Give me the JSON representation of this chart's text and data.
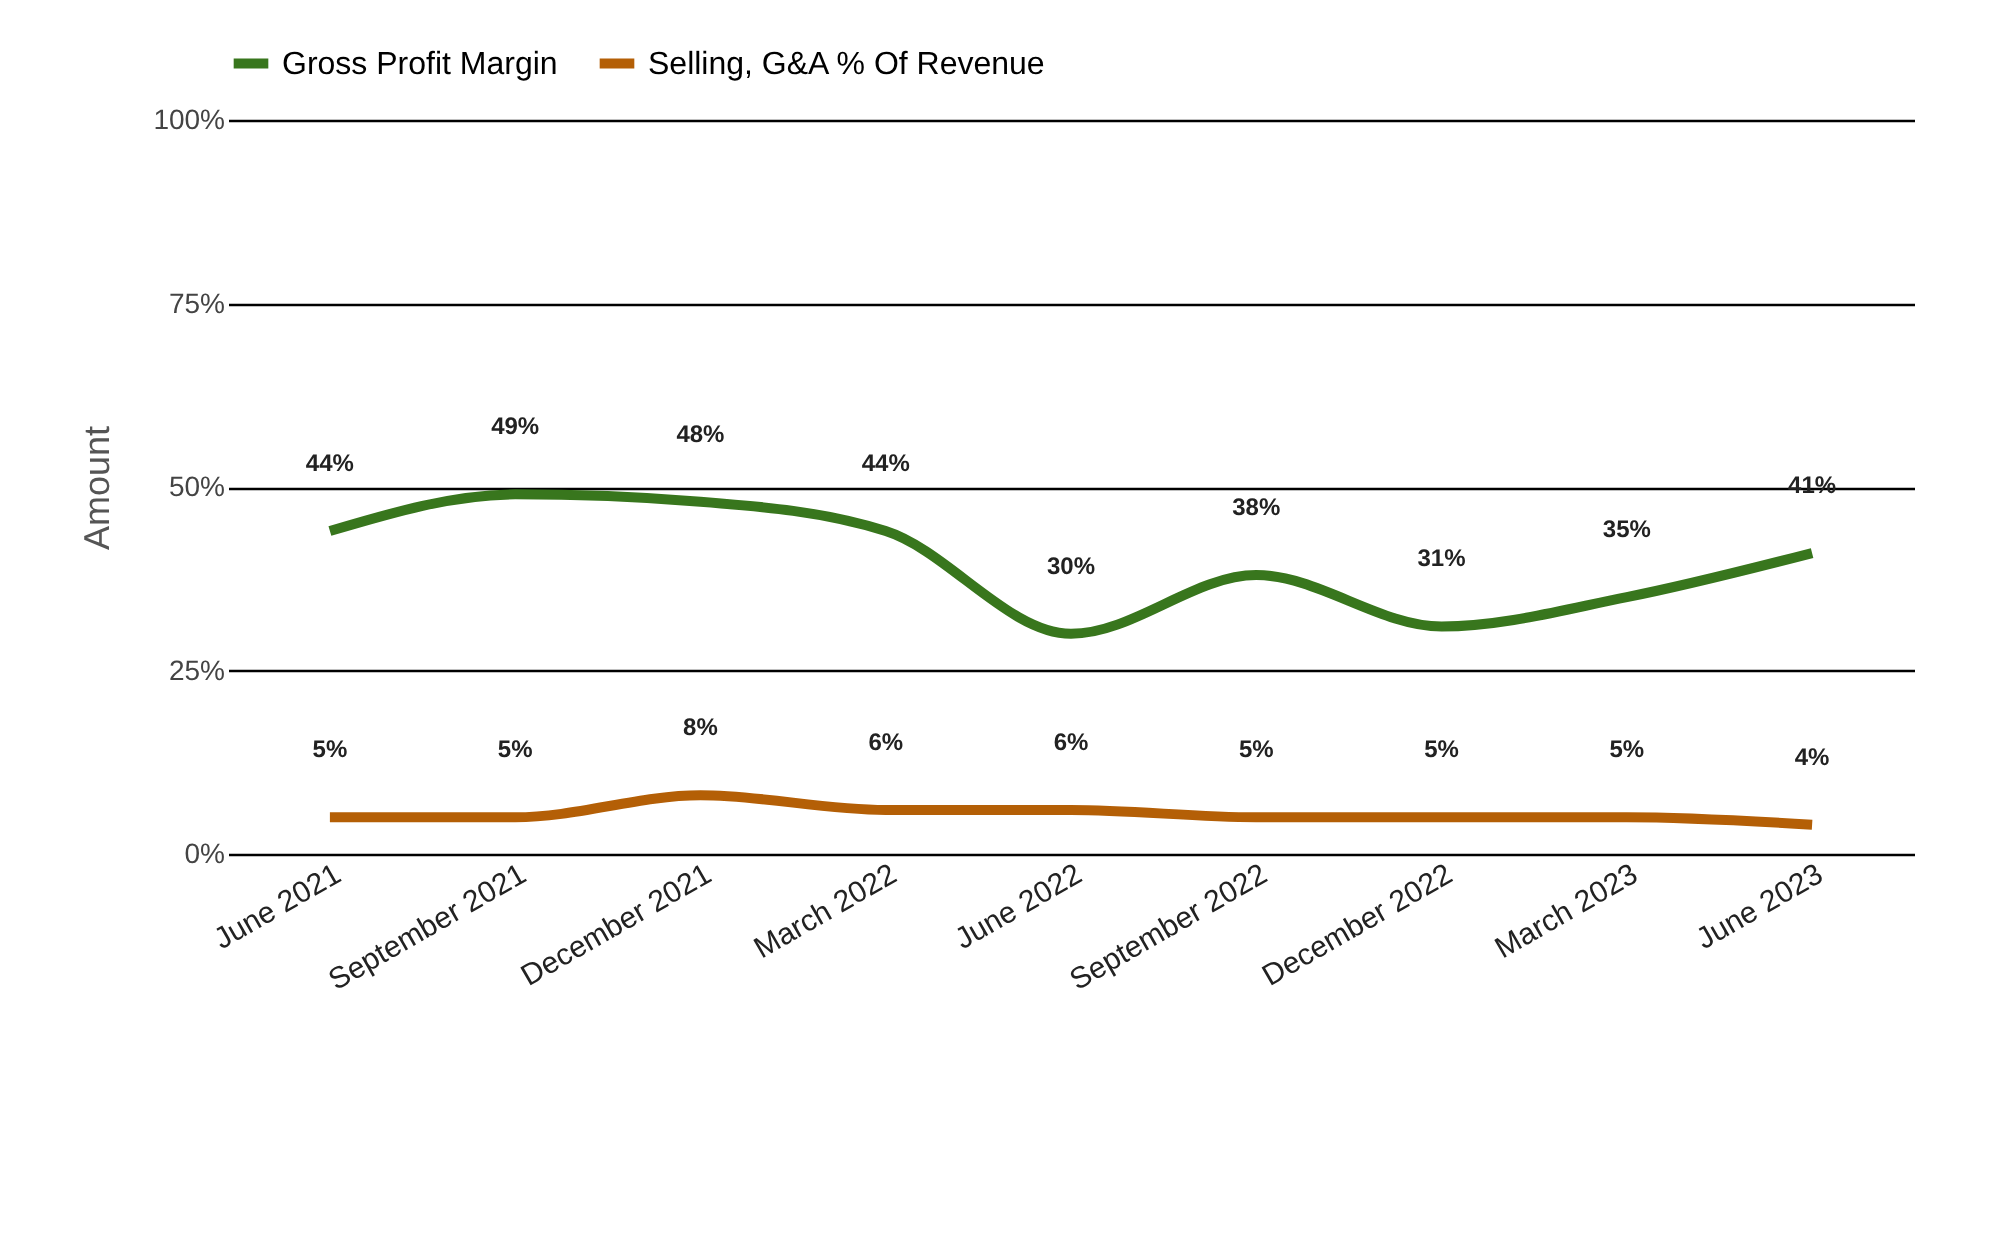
{
  "chart_data": {
    "type": "line",
    "ylabel": "Amount",
    "categories": [
      "June 2021",
      "September 2021",
      "December 2021",
      "March 2022",
      "June 2022",
      "September 2022",
      "December 2022",
      "March 2023",
      "June 2023"
    ],
    "series": [
      {
        "name": "Gross Profit Margin",
        "color": "#38761d",
        "values": [
          44,
          49,
          48,
          44,
          30,
          38,
          31,
          35,
          41
        ],
        "value_labels": [
          "44%",
          "49%",
          "48%",
          "44%",
          "30%",
          "38%",
          "31%",
          "35%",
          "41%"
        ]
      },
      {
        "name": "Selling, G&A % Of Revenue",
        "color": "#b45f06",
        "values": [
          5,
          5,
          8,
          6,
          6,
          5,
          5,
          5,
          4
        ],
        "value_labels": [
          "5%",
          "5%",
          "8%",
          "6%",
          "6%",
          "5%",
          "5%",
          "5%",
          "4%"
        ]
      }
    ],
    "ylim": [
      0,
      100
    ],
    "yticks": [
      {
        "value": 0,
        "label": "0%"
      },
      {
        "value": 25,
        "label": "25%"
      },
      {
        "value": 50,
        "label": "50%"
      },
      {
        "value": 75,
        "label": "75%"
      },
      {
        "value": 100,
        "label": "100%"
      }
    ],
    "grid": "y",
    "legend": "top",
    "marker": "none",
    "line_style": "solid"
  }
}
